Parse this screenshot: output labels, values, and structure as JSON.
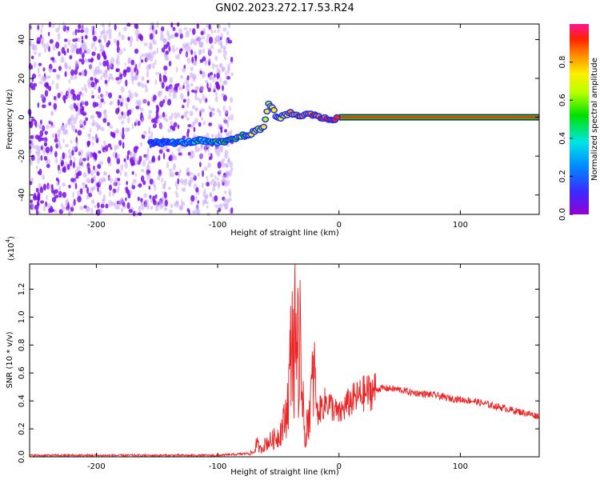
{
  "title": "GN02.2023.272.17.53.R24",
  "colors": {
    "spectrogram_noise": "#8a2be2",
    "snr_line": "#ee2222",
    "axis": "#000000"
  },
  "chart_data": [
    {
      "type": "heatmap",
      "xlabel": "Height of straight line (km)",
      "ylabel": "Frequency (Hz)",
      "xlim": [
        -255,
        165
      ],
      "ylim": [
        -50,
        48
      ],
      "xticks": [
        -200,
        -100,
        0,
        100
      ],
      "yticks": [
        -40,
        -20,
        0,
        20,
        40
      ],
      "colormap": "rainbow",
      "noise_region_x": [
        -255,
        -88
      ],
      "trace": {
        "x": [
          -155,
          -140,
          -125,
          -115,
          -105,
          -97,
          -90,
          -82,
          -75,
          -68,
          -62,
          -58,
          -55,
          -52,
          -48,
          -44,
          -40,
          -35,
          -30,
          -25,
          -20,
          -15,
          -10,
          -5,
          0,
          20,
          60,
          100,
          165
        ],
        "y": [
          -13,
          -13,
          -13,
          -12,
          -13,
          -13,
          -12,
          -10,
          -9,
          -7,
          -5,
          7,
          5,
          1,
          0,
          1,
          2,
          1,
          1,
          2,
          1,
          0,
          -1,
          -1,
          0,
          0,
          0,
          0,
          0
        ]
      },
      "colorbar": {
        "label": "Normalized spectral amplitude",
        "range": [
          0,
          1
        ],
        "ticks": [
          "0.0",
          "0.2",
          "0.4",
          "0.6",
          "0.8"
        ]
      }
    },
    {
      "type": "line",
      "xlabel": "Height of straight line (km)",
      "ylabel": "SNR (10 * v/v)",
      "multiplier": "(x10",
      "multiplier_exp": "4",
      "xlim": [
        -255,
        165
      ],
      "ylim": [
        0,
        1.38
      ],
      "xticks": [
        -200,
        -100,
        0,
        100
      ],
      "yticks": [
        "0.0",
        "0.2",
        "0.4",
        "0.6",
        "0.8",
        "1.0",
        "1.2"
      ],
      "series": [
        {
          "x": [
            -255,
            -200,
            -150,
            -100,
            -80,
            -70,
            -68,
            -65,
            -60,
            -55,
            -50,
            -45,
            -42,
            -40,
            -38,
            -37,
            -36,
            -35,
            -34,
            -33,
            -32,
            -31,
            -30,
            -28,
            -25,
            -22,
            -20,
            -18,
            -15,
            -10,
            -5,
            0,
            5,
            10,
            20,
            30,
            35,
            40,
            50,
            60,
            70,
            80,
            90,
            100,
            110,
            120,
            130,
            140,
            150,
            165
          ],
          "y": [
            0.01,
            0.01,
            0.01,
            0.01,
            0.02,
            0.03,
            0.1,
            0.05,
            0.1,
            0.12,
            0.15,
            0.25,
            0.4,
            0.7,
            1.0,
            0.4,
            1.38,
            0.5,
            1.28,
            0.3,
            0.9,
            0.2,
            0.6,
            0.1,
            0.3,
            0.5,
            0.6,
            0.3,
            0.35,
            0.4,
            0.35,
            0.3,
            0.36,
            0.4,
            0.45,
            0.48,
            0.49,
            0.49,
            0.48,
            0.46,
            0.45,
            0.44,
            0.42,
            0.41,
            0.4,
            0.38,
            0.36,
            0.34,
            0.32,
            0.29
          ]
        }
      ]
    }
  ]
}
